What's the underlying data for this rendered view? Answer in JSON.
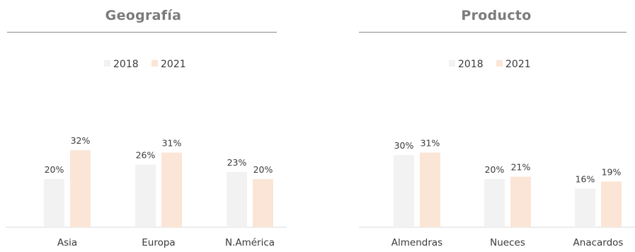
{
  "chart_data": [
    {
      "type": "bar",
      "title": "Geografía",
      "categories": [
        "Asia",
        "Europa",
        "N.América"
      ],
      "series": [
        {
          "name": "2018",
          "values": [
            20,
            26,
            23
          ],
          "labels": [
            "20%",
            "26%",
            "23%"
          ],
          "color": "#f2f2f2"
        },
        {
          "name": "2021",
          "values": [
            32,
            31,
            20
          ],
          "labels": [
            "32%",
            "31%",
            "20%"
          ],
          "color": "#fbe5d6"
        }
      ],
      "legend": "top-center",
      "grid": false,
      "ylim": [
        0,
        45
      ],
      "unit": "%"
    },
    {
      "type": "bar",
      "title": "Producto",
      "categories": [
        "Almendras",
        "Nueces",
        "Anacardos"
      ],
      "series": [
        {
          "name": "2018",
          "values": [
            30,
            20,
            16
          ],
          "labels": [
            "30%",
            "20%",
            "16%"
          ],
          "color": "#f2f2f2"
        },
        {
          "name": "2021",
          "values": [
            31,
            21,
            19
          ],
          "labels": [
            "31%",
            "21%",
            "19%"
          ],
          "color": "#fbe5d6"
        }
      ],
      "legend": "top-center",
      "grid": false,
      "ylim": [
        0,
        45
      ],
      "unit": "%"
    }
  ]
}
